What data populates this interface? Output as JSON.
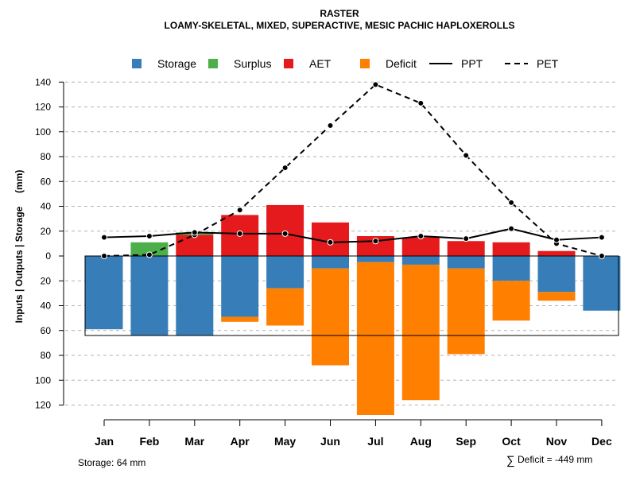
{
  "chart_data": {
    "type": "bar",
    "title": "RASTER",
    "subtitle": "LOAMY-SKELETAL, MIXED, SUPERACTIVE, MESIC PACHIC HAPLOXEROLLS",
    "ylabel": "Inputs | Outputs | Storage     (mm)",
    "ylim": [
      -130,
      140
    ],
    "yticks": [
      140,
      120,
      100,
      80,
      60,
      40,
      20,
      0,
      -20,
      -40,
      -60,
      -80,
      -100,
      -120
    ],
    "ytick_labels": [
      "140",
      "120",
      "100",
      "80",
      "60",
      "40",
      "20",
      "0",
      "20",
      "40",
      "60",
      "80",
      "100",
      "120"
    ],
    "grid": true,
    "categories": [
      "Jan",
      "Feb",
      "Mar",
      "Apr",
      "May",
      "Jun",
      "Jul",
      "Aug",
      "Sep",
      "Oct",
      "Nov",
      "Dec"
    ],
    "legend": {
      "placement": "top",
      "entries": [
        {
          "label": "Storage",
          "kind": "box",
          "color": "#377eb8"
        },
        {
          "label": "Surplus",
          "kind": "box",
          "color": "#4daf4a"
        },
        {
          "label": "AET",
          "kind": "box",
          "color": "#e41a1c"
        },
        {
          "label": "Deficit",
          "kind": "box",
          "color": "#ff7f00"
        },
        {
          "label": "PPT",
          "kind": "line",
          "dash": "solid",
          "color": "#000000"
        },
        {
          "label": "PET",
          "kind": "line",
          "dash": "dashed",
          "color": "#000000"
        }
      ]
    },
    "series": [
      {
        "name": "AET",
        "color": "#e41a1c",
        "values": [
          0,
          0,
          17,
          33,
          41,
          27,
          16,
          15,
          12,
          11,
          4,
          0
        ]
      },
      {
        "name": "Surplus",
        "color": "#4daf4a",
        "values": [
          0,
          11,
          2,
          0,
          0,
          0,
          0,
          0,
          0,
          0,
          0,
          0
        ]
      },
      {
        "name": "Storage",
        "color": "#377eb8",
        "values": [
          -59,
          -64,
          -64,
          -49,
          -26,
          -10,
          -5,
          -7,
          -10,
          -20,
          -29,
          -44
        ]
      },
      {
        "name": "Deficit",
        "color": "#ff7f00",
        "values": [
          0,
          0,
          0,
          -4,
          -30,
          -78,
          -123,
          -109,
          -69,
          -32,
          -7,
          0
        ]
      },
      {
        "name": "PPT",
        "color": "#000000",
        "values": [
          15,
          16,
          19,
          18,
          18,
          11,
          12,
          16,
          14,
          22,
          13,
          15
        ]
      },
      {
        "name": "PET",
        "color": "#000000",
        "values": [
          0,
          1,
          17,
          37,
          71,
          105,
          138,
          123,
          81,
          43,
          10,
          0
        ]
      }
    ],
    "storage_capacity": 64,
    "annotations": {
      "storage": "Storage: 64 mm",
      "deficit_symbol": "∑",
      "deficit": "Deficit = -449 mm"
    }
  }
}
